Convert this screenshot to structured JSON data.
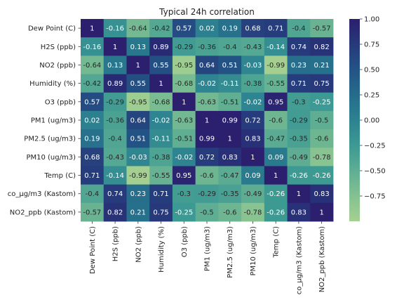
{
  "chart_data": {
    "type": "heatmap",
    "title": "Typical 24h correlation",
    "labels": [
      "Dew Point (C)",
      "H2S (ppb)",
      "NO2 (ppb)",
      "Humidity (%)",
      "O3 (ppb)",
      "PM1 (ug/m3)",
      "PM2.5 (ug/m3)",
      "PM10 (ug/m3)",
      "Temp (C)",
      "co_µg/m3 (Kastom)",
      "NO2_ppb (Kastom)"
    ],
    "values": [
      [
        1,
        -0.16,
        -0.64,
        -0.42,
        0.57,
        0.02,
        0.19,
        0.68,
        0.71,
        -0.4,
        -0.57
      ],
      [
        -0.16,
        1,
        0.13,
        0.89,
        -0.29,
        -0.36,
        -0.4,
        -0.43,
        -0.14,
        0.74,
        0.82
      ],
      [
        -0.64,
        0.13,
        1,
        0.55,
        -0.95,
        0.64,
        0.51,
        -0.03,
        -0.99,
        0.23,
        0.21
      ],
      [
        -0.42,
        0.89,
        0.55,
        1,
        -0.68,
        -0.02,
        -0.11,
        -0.38,
        -0.55,
        0.71,
        0.75
      ],
      [
        0.57,
        -0.29,
        -0.95,
        -0.68,
        1,
        -0.63,
        -0.51,
        -0.02,
        0.95,
        -0.3,
        -0.25
      ],
      [
        0.02,
        -0.36,
        0.64,
        -0.02,
        -0.63,
        1,
        0.99,
        0.72,
        -0.6,
        -0.29,
        -0.5
      ],
      [
        0.19,
        -0.4,
        0.51,
        -0.11,
        -0.51,
        0.99,
        1,
        0.83,
        -0.47,
        -0.35,
        -0.6
      ],
      [
        0.68,
        -0.43,
        -0.03,
        -0.38,
        -0.02,
        0.72,
        0.83,
        1,
        0.09,
        -0.49,
        -0.78
      ],
      [
        0.71,
        -0.14,
        -0.99,
        -0.55,
        0.95,
        -0.6,
        -0.47,
        0.09,
        1,
        -0.26,
        -0.26
      ],
      [
        -0.4,
        0.74,
        0.23,
        0.71,
        -0.3,
        -0.29,
        -0.35,
        -0.49,
        -0.26,
        1,
        0.83
      ],
      [
        -0.57,
        0.82,
        0.21,
        0.75,
        -0.25,
        -0.5,
        -0.6,
        -0.78,
        -0.26,
        0.83,
        1
      ]
    ],
    "value_range": [
      -1,
      1
    ],
    "colorbar_ticks": [
      1.0,
      0.75,
      0.5,
      0.25,
      0.0,
      -0.25,
      -0.5,
      -0.75
    ],
    "colorbar_tick_labels": [
      "1.00",
      "0.75",
      "0.50",
      "0.25",
      "0.00",
      "−0.25",
      "−0.50",
      "−0.75"
    ],
    "colormap": "crest",
    "colormap_stops": [
      "#a5d091",
      "#84c191",
      "#5fae93",
      "#3c9993",
      "#2d8290",
      "#256c8b",
      "#235485",
      "#27397b",
      "#2b1f6e"
    ],
    "grid": false,
    "colorbar_position": "right"
  }
}
